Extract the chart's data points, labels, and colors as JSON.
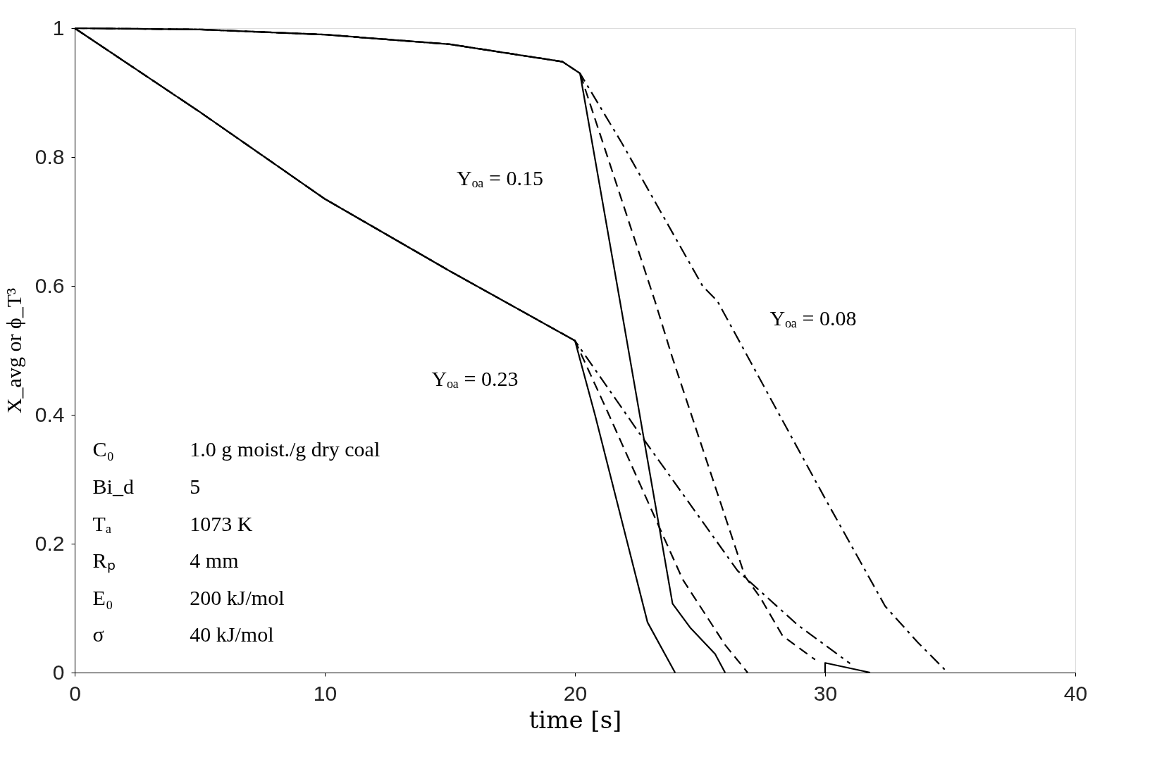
{
  "chart_data": {
    "type": "line",
    "xlabel": "time [s]",
    "ylabel": "X_avg or ϕ_T³",
    "xlim": [
      0,
      40
    ],
    "ylim": [
      0,
      1
    ],
    "xticks": [
      0,
      10,
      20,
      30,
      40
    ],
    "yticks": [
      0,
      0.2,
      0.4,
      0.6,
      0.8,
      1
    ],
    "grid": false,
    "marker": "none",
    "series": [
      {
        "color": "#000000",
        "line_style": "solid",
        "x": [
          0,
          5,
          10,
          15,
          19.5,
          20.2,
          21.8,
          23.9,
          24.6,
          25.6,
          26.0
        ],
        "values": [
          1,
          0.998,
          0.99,
          0.975,
          0.948,
          0.93,
          0.576,
          0.107,
          0.07,
          0.029,
          0
        ]
      },
      {
        "color": "#000000",
        "line_style": "dashed",
        "x": [
          0,
          5,
          10,
          15,
          19.5,
          20.2,
          21.6,
          23.2,
          23.9,
          26.8,
          27.4,
          28.3,
          29.6
        ],
        "values": [
          1,
          0.998,
          0.99,
          0.975,
          0.948,
          0.93,
          0.765,
          0.576,
          0.488,
          0.149,
          0.117,
          0.057,
          0.02
        ]
      },
      {
        "color": "#000000",
        "line_style": "dashdot",
        "x": [
          0,
          5,
          10,
          15,
          19.5,
          20.2,
          21.9,
          25.1,
          25.7,
          30.0,
          32.4,
          33.7,
          34.9
        ],
        "values": [
          1,
          0.998,
          0.99,
          0.975,
          0.948,
          0.93,
          0.82,
          0.6,
          0.576,
          0.27,
          0.103,
          0.047,
          0
        ]
      },
      {
        "color": "#000000",
        "line_style": "solid",
        "x": [
          0,
          5,
          10,
          15,
          20,
          20.8,
          22.9,
          24.0
        ],
        "values": [
          1,
          0.87,
          0.735,
          0.623,
          0.515,
          0.4,
          0.078,
          0
        ]
      },
      {
        "color": "#000000",
        "line_style": "dashed",
        "x": [
          0,
          5,
          10,
          15,
          20,
          21.3,
          24.3,
          26.0,
          26.9
        ],
        "values": [
          1,
          0.87,
          0.735,
          0.623,
          0.515,
          0.405,
          0.145,
          0.043,
          0
        ]
      },
      {
        "color": "#000000",
        "line_style": "dashdot",
        "x": [
          0,
          5,
          10,
          15,
          20,
          22.6,
          26.5,
          28.9,
          31.0
        ],
        "values": [
          1,
          0.87,
          0.735,
          0.623,
          0.515,
          0.37,
          0.158,
          0.074,
          0.014
        ]
      },
      {
        "color": "#000000",
        "line_style": "solid",
        "x": [
          30.0,
          30.0,
          31.8
        ],
        "values": [
          0,
          0.015,
          0
        ]
      }
    ],
    "annotations": [
      "Yₒₐ = 0.15",
      "Yₒₐ = 0.08",
      "Yₒₐ = 0.23",
      "C₀",
      "1.0 g moist./g dry coal",
      "Bi_d",
      "5",
      "Tₐ",
      "1073 K",
      "Rₚ",
      "4 mm",
      "E₀",
      "200 kJ/mol",
      "σ",
      "40 kJ/mol"
    ]
  }
}
